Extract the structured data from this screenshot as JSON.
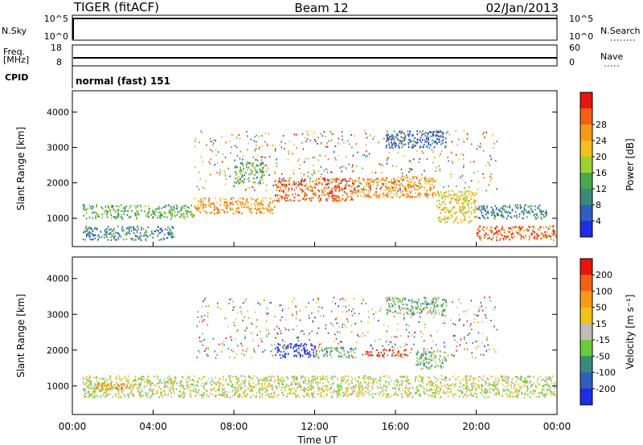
{
  "header": {
    "station": "TIGER (fitACF)",
    "beam": "Beam 12",
    "date": "02/Jan/2013"
  },
  "top_panels": {
    "nsky_label": "N.Sky",
    "nsearch_label": "N.Search",
    "nsky_ticks": [
      "10^5",
      "10^0"
    ],
    "freq_label_1": "Freq.",
    "freq_label_2": "[MHz]",
    "freq_ticks": [
      "18",
      "8"
    ],
    "nave_label": "Nave",
    "nave_ticks": [
      "60",
      "0"
    ],
    "cpid_label": "CPID",
    "cpid_text": "normal (fast) 151"
  },
  "chart_data": [
    {
      "type": "heatmap",
      "parameter": "Power",
      "ylabel": "Slant Range [km]",
      "colorbar_label": "Power [dB]",
      "ylim": [
        200,
        4600
      ],
      "yticks": [
        1000,
        2000,
        3000,
        4000
      ],
      "colorbar_ticks": [
        "4",
        "8",
        "12",
        "16",
        "20",
        "24",
        "28"
      ],
      "colorbar_colors": [
        "#1e2ee6",
        "#2f5ec0",
        "#3a8a7a",
        "#4aa84a",
        "#9cd32f",
        "#f2c218",
        "#f79a16",
        "#f36016",
        "#e8140e"
      ],
      "bands": [
        {
          "x": [
            0.5,
            6
          ],
          "range": [
            1000,
            1400
          ],
          "level": 3
        },
        {
          "x": [
            6,
            10
          ],
          "range": [
            1150,
            1600
          ],
          "level": 6
        },
        {
          "x": [
            10,
            14
          ],
          "range": [
            1500,
            2150
          ],
          "level": 7
        },
        {
          "x": [
            14,
            18
          ],
          "range": [
            1600,
            2200
          ],
          "level": 6
        },
        {
          "x": [
            18,
            20
          ],
          "range": [
            900,
            1800
          ],
          "level": 5
        },
        {
          "x": [
            20,
            24
          ],
          "range": [
            400,
            800
          ],
          "level": 7
        },
        {
          "x": [
            15.5,
            18.5
          ],
          "range": [
            3000,
            3500
          ],
          "level": 1
        },
        {
          "x": [
            0.5,
            5
          ],
          "range": [
            400,
            800
          ],
          "level": 2
        },
        {
          "x": [
            8,
            9.5
          ],
          "range": [
            2000,
            2600
          ],
          "level": 3
        },
        {
          "x": [
            20,
            23.5
          ],
          "range": [
            1000,
            1400
          ],
          "level": 2
        }
      ]
    },
    {
      "type": "heatmap",
      "parameter": "Velocity",
      "ylabel": "Slant Range [km]",
      "xlabel": "Time UT",
      "colorbar_label": "Velocity [m s⁻¹]",
      "ylim": [
        200,
        4600
      ],
      "yticks": [
        1000,
        2000,
        3000,
        4000
      ],
      "xticks": [
        "00:00",
        "04:00",
        "08:00",
        "12:00",
        "16:00",
        "20:00",
        "00:00"
      ],
      "colorbar_ticks": [
        "200",
        "100",
        "50",
        "15",
        "-15",
        "-50",
        "-100",
        "-200"
      ],
      "colorbar_colors": [
        "#1e2ee6",
        "#2f5ec0",
        "#3a8a7a",
        "#6acb3a",
        "#bebeb4",
        "#f2c218",
        "#f79a16",
        "#f36016",
        "#e8140e"
      ],
      "bands": [
        {
          "x": [
            0.5,
            24
          ],
          "range": [
            700,
            1300
          ],
          "level": 4
        },
        {
          "x": [
            10,
            12
          ],
          "range": [
            1800,
            2200
          ],
          "level": 0
        },
        {
          "x": [
            12,
            14
          ],
          "range": [
            1800,
            2100
          ],
          "level": 3
        },
        {
          "x": [
            14.5,
            16.5
          ],
          "range": [
            1850,
            2050
          ],
          "level": 8
        },
        {
          "x": [
            17,
            18.5
          ],
          "range": [
            1500,
            2000
          ],
          "level": 3
        },
        {
          "x": [
            15.5,
            18.5
          ],
          "range": [
            3000,
            3500
          ],
          "level": 3
        },
        {
          "x": [
            1,
            3
          ],
          "range": [
            900,
            1100
          ],
          "level": 6
        }
      ]
    }
  ]
}
